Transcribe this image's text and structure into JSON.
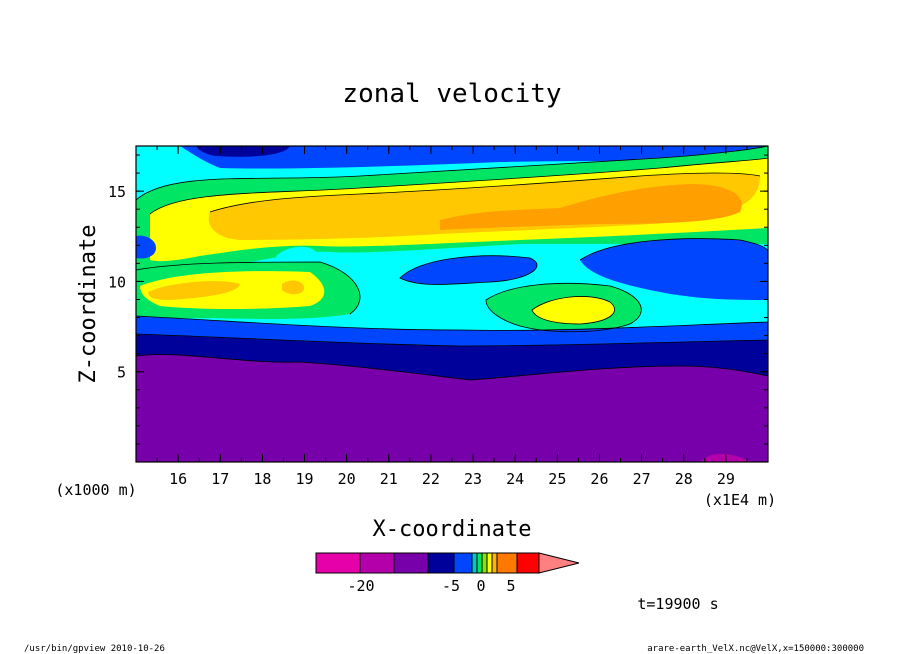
{
  "chart_data": {
    "type": "heatmap",
    "title": "zonal velocity",
    "xlabel": "X-coordinate",
    "ylabel": "Z-coordinate",
    "x_unit_label": "(x1E4 m)",
    "y_unit_label": "(x1000 m)",
    "xlim": [
      15.0,
      30.0
    ],
    "ylim": [
      0.0,
      17.5
    ],
    "x_ticks": [
      "16",
      "17",
      "18",
      "19",
      "20",
      "21",
      "22",
      "23",
      "24",
      "25",
      "26",
      "27",
      "28",
      "29"
    ],
    "x_tick_values": [
      16,
      17,
      18,
      19,
      20,
      21,
      22,
      23,
      24,
      25,
      26,
      27,
      28,
      29
    ],
    "y_ticks": [
      "5",
      "10",
      "15"
    ],
    "y_tick_values": [
      5,
      10,
      15
    ],
    "colorbar": {
      "tick_labels": [
        "-20",
        "-5",
        "0",
        "5"
      ],
      "tick_values": [
        -20,
        -5,
        0,
        5
      ],
      "level_colors": [
        "#e600aa",
        "#b400aa",
        "#7800aa",
        "#00009b",
        "#0046ff",
        "#00c8c8",
        "#00e664",
        "#82e600",
        "#ffff00",
        "#ffb400",
        "#ff7800",
        "#ff0000",
        "#ff8080"
      ]
    },
    "regions": [
      {
        "level": "-20 to -10 (deep purple)",
        "z_range": [
          0,
          5.5
        ],
        "color": "#7800aa"
      },
      {
        "level": "-10 to -5 (navy)",
        "z_range": [
          5.5,
          7.0
        ],
        "color": "#00009b"
      },
      {
        "level": "-5 to -2 (blue)",
        "z_range": [
          7.0,
          8.5
        ],
        "color": "#0046ff"
      },
      {
        "level": "~0 (cyan)",
        "z_range": [
          8.5,
          13.0
        ],
        "color": "#00ffff"
      },
      {
        "level": "positive (yellow/orange)",
        "z_range": [
          12.0,
          15.5
        ],
        "color": "#ffc800"
      }
    ],
    "annotation": "t=19900 s"
  },
  "footer": {
    "left": "/usr/bin/gpview  2010-10-26",
    "right": "arare-earth_VelX.nc@VelX,x=150000:300000"
  }
}
